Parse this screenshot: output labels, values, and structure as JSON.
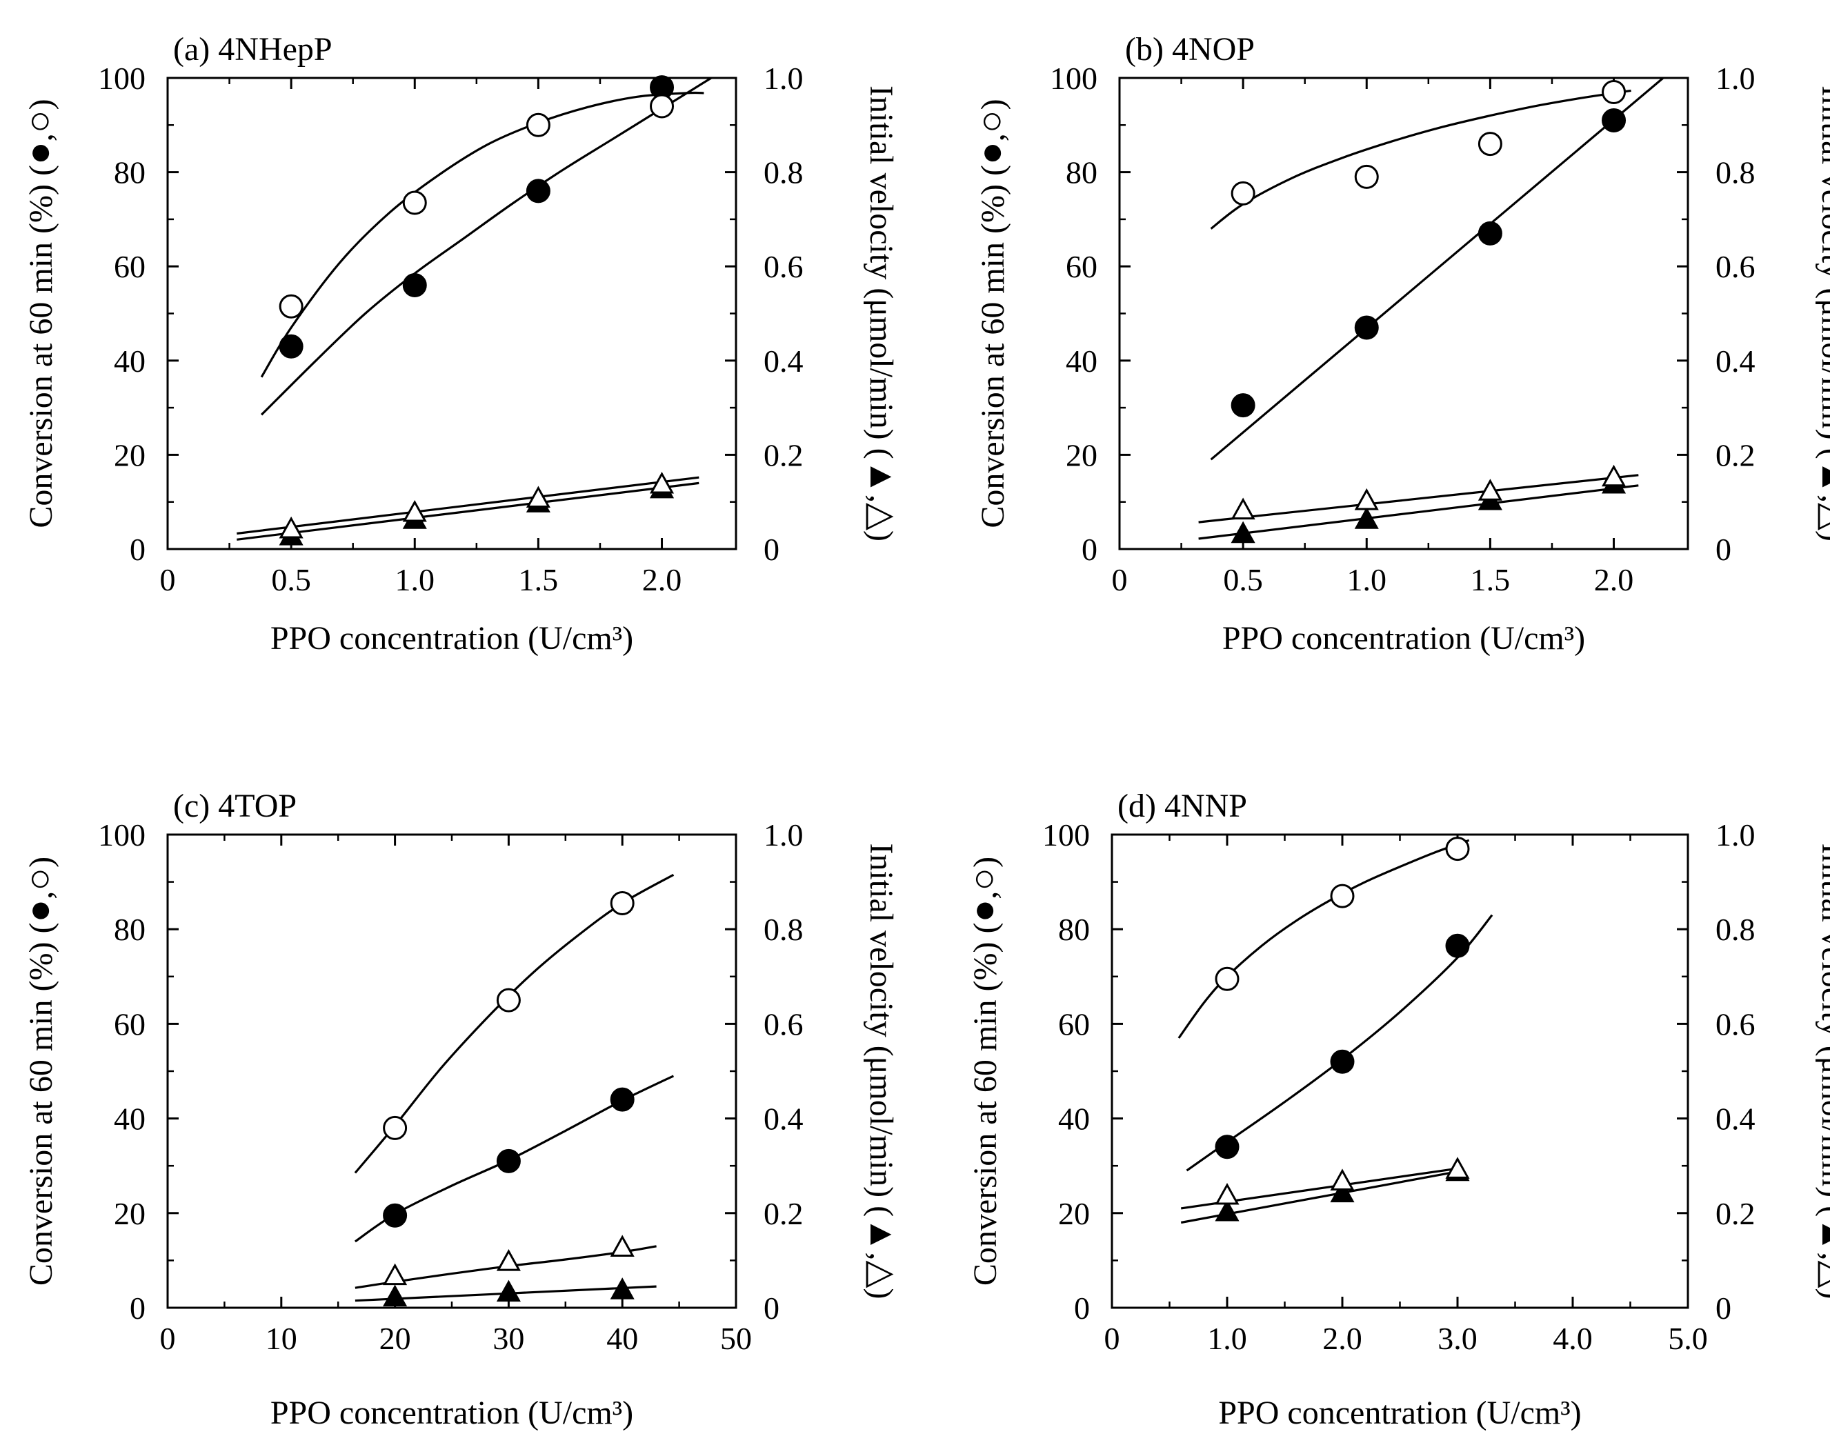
{
  "figure": {
    "markers": {
      "filled_color": "#000000",
      "open_fill": "#ffffff",
      "stroke_color": "#000000"
    }
  },
  "chart_data": [
    {
      "id": "a",
      "type": "scatter",
      "title": "(a) 4NHepP",
      "xlabel": "PPO concentration (U/cm³)",
      "ylabel_left": [
        "Conversion at 60 min (%) (",
        "●",
        ",",
        "○",
        ")"
      ],
      "ylabel_right": [
        "Initial velocity (μmol/min) (",
        "▲",
        ",",
        "△",
        ")"
      ],
      "xlim": [
        0,
        2.3
      ],
      "ylim_left": [
        0,
        100
      ],
      "ylim_right": [
        0,
        1.0
      ],
      "xticks": [
        0,
        0.5,
        1.0,
        1.5,
        2.0
      ],
      "xtick_labels": [
        "0",
        "0.5",
        "1.0",
        "1.5",
        "2.0"
      ],
      "yticks_left": [
        0,
        20,
        40,
        60,
        80,
        100
      ],
      "ytick_labels_left": [
        "0",
        "20",
        "40",
        "60",
        "80",
        "100"
      ],
      "yticks_right": [
        0,
        0.2,
        0.4,
        0.6,
        0.8,
        1.0
      ],
      "ytick_labels_right": [
        "0",
        "0.2",
        "0.4",
        "0.6",
        "0.8",
        "1.0"
      ],
      "series": [
        {
          "name": "conversion-open",
          "marker": "circle-open",
          "axis": "left",
          "x": [
            0.5,
            1.0,
            1.5,
            2.0
          ],
          "y": [
            51.5,
            73.5,
            90,
            94
          ]
        },
        {
          "name": "conversion-filled",
          "marker": "circle-filled",
          "axis": "left",
          "x": [
            0.5,
            1.0,
            1.5,
            2.0
          ],
          "y": [
            43,
            56,
            76,
            98
          ]
        },
        {
          "name": "velocity-open",
          "marker": "triangle-open",
          "axis": "right",
          "x": [
            0.5,
            1.0,
            1.5,
            2.0
          ],
          "y": [
            0.04,
            0.075,
            0.105,
            0.135
          ]
        },
        {
          "name": "velocity-filled",
          "marker": "triangle-filled",
          "axis": "right",
          "x": [
            0.5,
            1.0,
            1.5,
            2.0
          ],
          "y": [
            0.025,
            0.06,
            0.095,
            0.125
          ]
        }
      ],
      "fits": [
        {
          "name": "fit-open-circle",
          "axis": "left",
          "x": [
            0.38,
            0.5,
            0.7,
            0.9,
            1.1,
            1.3,
            1.5,
            1.7,
            1.9,
            2.1,
            2.17
          ],
          "y": [
            36.5,
            47,
            61,
            71.5,
            79.5,
            86,
            90.5,
            93.8,
            96,
            96.8,
            96.8
          ]
        },
        {
          "name": "fit-filled-circle",
          "axis": "left",
          "x": [
            0.38,
            0.6,
            0.8,
            1.0,
            1.2,
            1.4,
            1.6,
            1.8,
            2.0,
            2.2
          ],
          "y": [
            28.5,
            40,
            50,
            58.5,
            66,
            73.5,
            80.5,
            87,
            93.5,
            100
          ]
        },
        {
          "name": "fit-open-triangle",
          "axis": "right",
          "x": [
            0.28,
            2.15
          ],
          "y": [
            0.033,
            0.152
          ]
        },
        {
          "name": "fit-filled-triangle",
          "axis": "right",
          "x": [
            0.28,
            2.15
          ],
          "y": [
            0.02,
            0.14
          ]
        }
      ]
    },
    {
      "id": "b",
      "type": "scatter",
      "title": "(b) 4NOP",
      "xlabel": "PPO concentration (U/cm³)",
      "ylabel_left": [
        "Conversion at 60 min (%) (",
        "●",
        ",",
        "○",
        ")"
      ],
      "ylabel_right": [
        "Initial velocity (μmol/min) (",
        "▲",
        ",",
        "△",
        ")"
      ],
      "xlim": [
        0,
        2.3
      ],
      "ylim_left": [
        0,
        100
      ],
      "ylim_right": [
        0,
        1.0
      ],
      "xticks": [
        0,
        0.5,
        1.0,
        1.5,
        2.0
      ],
      "xtick_labels": [
        "0",
        "0.5",
        "1.0",
        "1.5",
        "2.0"
      ],
      "yticks_left": [
        0,
        20,
        40,
        60,
        80,
        100
      ],
      "ytick_labels_left": [
        "0",
        "20",
        "40",
        "60",
        "80",
        "100"
      ],
      "yticks_right": [
        0,
        0.2,
        0.4,
        0.6,
        0.8,
        1.0
      ],
      "ytick_labels_right": [
        "0",
        "0.2",
        "0.4",
        "0.6",
        "0.8",
        "1.0"
      ],
      "series": [
        {
          "name": "conversion-open",
          "marker": "circle-open",
          "axis": "left",
          "x": [
            0.5,
            1.0,
            1.5,
            2.0
          ],
          "y": [
            75.5,
            79,
            86,
            97
          ]
        },
        {
          "name": "conversion-filled",
          "marker": "circle-filled",
          "axis": "left",
          "x": [
            0.5,
            1.0,
            1.5,
            2.0
          ],
          "y": [
            30.5,
            47,
            67,
            91
          ]
        },
        {
          "name": "velocity-open",
          "marker": "triangle-open",
          "axis": "right",
          "x": [
            0.5,
            1.0,
            1.5,
            2.0
          ],
          "y": [
            0.08,
            0.1,
            0.12,
            0.15
          ]
        },
        {
          "name": "velocity-filled",
          "marker": "triangle-filled",
          "axis": "right",
          "x": [
            0.5,
            1.0,
            1.5,
            2.0
          ],
          "y": [
            0.03,
            0.06,
            0.1,
            0.135
          ]
        }
      ],
      "fits": [
        {
          "name": "fit-open-circle",
          "axis": "left",
          "x": [
            0.37,
            0.5,
            0.7,
            0.9,
            1.1,
            1.3,
            1.5,
            1.7,
            1.9,
            2.07
          ],
          "y": [
            68,
            73.2,
            78.8,
            83,
            86.5,
            89.5,
            92,
            94.2,
            96,
            97.3
          ]
        },
        {
          "name": "fit-filled-circle",
          "axis": "left",
          "x": [
            0.37,
            2.2
          ],
          "y": [
            19,
            100
          ]
        },
        {
          "name": "fit-open-triangle",
          "axis": "right",
          "x": [
            0.32,
            2.1
          ],
          "y": [
            0.057,
            0.157
          ]
        },
        {
          "name": "fit-filled-triangle",
          "axis": "right",
          "x": [
            0.32,
            2.1
          ],
          "y": [
            0.022,
            0.135
          ]
        }
      ]
    },
    {
      "id": "c",
      "type": "scatter",
      "title": "(c) 4TOP",
      "xlabel": "PPO concentration (U/cm³)",
      "ylabel_left": [
        "Conversion at 60 min (%) (",
        "●",
        ",",
        "○",
        ")"
      ],
      "ylabel_right": [
        "Initial velocity (μmol/min) (",
        "▲",
        ",",
        "△",
        ")"
      ],
      "xlim": [
        0,
        50
      ],
      "ylim_left": [
        0,
        100
      ],
      "ylim_right": [
        0,
        1.0
      ],
      "xticks": [
        0,
        10,
        20,
        30,
        40,
        50
      ],
      "xtick_labels": [
        "0",
        "10",
        "20",
        "30",
        "40",
        "50"
      ],
      "yticks_left": [
        0,
        20,
        40,
        60,
        80,
        100
      ],
      "ytick_labels_left": [
        "0",
        "20",
        "40",
        "60",
        "80",
        "100"
      ],
      "yticks_right": [
        0,
        0.2,
        0.4,
        0.6,
        0.8,
        1.0
      ],
      "ytick_labels_right": [
        "0",
        "0.2",
        "0.4",
        "0.6",
        "0.8",
        "1.0"
      ],
      "series": [
        {
          "name": "conversion-open",
          "marker": "circle-open",
          "axis": "left",
          "x": [
            20,
            30,
            40
          ],
          "y": [
            38,
            65,
            85.5
          ]
        },
        {
          "name": "conversion-filled",
          "marker": "circle-filled",
          "axis": "left",
          "x": [
            20,
            30,
            40
          ],
          "y": [
            19.5,
            31,
            44
          ]
        },
        {
          "name": "velocity-open",
          "marker": "triangle-open",
          "axis": "right",
          "x": [
            20,
            30,
            40
          ],
          "y": [
            0.065,
            0.095,
            0.125
          ]
        },
        {
          "name": "velocity-filled",
          "marker": "triangle-filled",
          "axis": "right",
          "x": [
            20,
            30,
            40
          ],
          "y": [
            0.02,
            0.03,
            0.035
          ]
        }
      ],
      "fits": [
        {
          "name": "fit-open-circle",
          "axis": "left",
          "x": [
            16.5,
            20,
            24,
            28,
            32,
            36,
            40,
            44.5
          ],
          "y": [
            28.5,
            38.5,
            50.5,
            61,
            70.5,
            78.5,
            85.5,
            91.5
          ]
        },
        {
          "name": "fit-filled-circle",
          "axis": "left",
          "x": [
            16.5,
            20,
            25,
            30,
            35,
            40,
            44.5
          ],
          "y": [
            14,
            19.8,
            25.8,
            31.2,
            37.4,
            43.8,
            49
          ]
        },
        {
          "name": "fit-open-triangle",
          "axis": "right",
          "x": [
            16.5,
            20,
            25,
            30,
            35,
            40,
            43
          ],
          "y": [
            0.042,
            0.055,
            0.072,
            0.088,
            0.102,
            0.118,
            0.13
          ]
        },
        {
          "name": "fit-filled-triangle",
          "axis": "right",
          "x": [
            16.5,
            43
          ],
          "y": [
            0.015,
            0.045
          ]
        }
      ]
    },
    {
      "id": "d",
      "type": "scatter",
      "title": "(d) 4NNP",
      "xlabel": "PPO concentration (U/cm³)",
      "ylabel_left": [
        "Conversion at 60 min (%) (",
        "●",
        ",",
        "○",
        ")"
      ],
      "ylabel_right": [
        "Initial velocity (μmol/min) (",
        "▲",
        ",",
        "△",
        ")"
      ],
      "xlim": [
        0,
        5.0
      ],
      "ylim_left": [
        0,
        100
      ],
      "ylim_right": [
        0,
        1.0
      ],
      "xticks": [
        0,
        1.0,
        2.0,
        3.0,
        4.0,
        5.0
      ],
      "xtick_labels": [
        "0",
        "1.0",
        "2.0",
        "3.0",
        "4.0",
        "5.0"
      ],
      "yticks_left": [
        0,
        20,
        40,
        60,
        80,
        100
      ],
      "ytick_labels_left": [
        "0",
        "20",
        "40",
        "60",
        "80",
        "100"
      ],
      "yticks_right": [
        0,
        0.2,
        0.4,
        0.6,
        0.8,
        1.0
      ],
      "ytick_labels_right": [
        "0",
        "0.2",
        "0.4",
        "0.6",
        "0.8",
        "1.0"
      ],
      "series": [
        {
          "name": "conversion-open",
          "marker": "circle-open",
          "axis": "left",
          "x": [
            1.0,
            2.0,
            3.0
          ],
          "y": [
            69.5,
            87,
            97
          ]
        },
        {
          "name": "conversion-filled",
          "marker": "circle-filled",
          "axis": "left",
          "x": [
            1.0,
            2.0,
            3.0
          ],
          "y": [
            34,
            52,
            76.5
          ]
        },
        {
          "name": "velocity-open",
          "marker": "triangle-open",
          "axis": "right",
          "x": [
            1.0,
            2.0,
            3.0
          ],
          "y": [
            0.235,
            0.265,
            0.29
          ]
        },
        {
          "name": "velocity-filled",
          "marker": "triangle-filled",
          "axis": "right",
          "x": [
            1.0,
            2.0,
            3.0
          ],
          "y": [
            0.2,
            0.24,
            0.285
          ]
        }
      ],
      "fits": [
        {
          "name": "fit-open-circle",
          "axis": "left",
          "x": [
            0.58,
            0.8,
            1.0,
            1.3,
            1.6,
            1.9,
            2.2,
            2.5,
            2.8,
            3.1
          ],
          "y": [
            57,
            64.5,
            70,
            76.5,
            81.8,
            86.2,
            90,
            93.2,
            96.2,
            98.8
          ]
        },
        {
          "name": "fit-filled-circle",
          "axis": "left",
          "x": [
            0.65,
            1.0,
            1.5,
            2.0,
            2.5,
            3.0,
            3.3
          ],
          "y": [
            29,
            35,
            43.5,
            52.5,
            62.5,
            74,
            83
          ]
        },
        {
          "name": "fit-open-triangle",
          "axis": "right",
          "x": [
            0.6,
            3.05
          ],
          "y": [
            0.21,
            0.296
          ]
        },
        {
          "name": "fit-filled-triangle",
          "axis": "right",
          "x": [
            0.6,
            3.05
          ],
          "y": [
            0.18,
            0.29
          ]
        }
      ]
    }
  ]
}
